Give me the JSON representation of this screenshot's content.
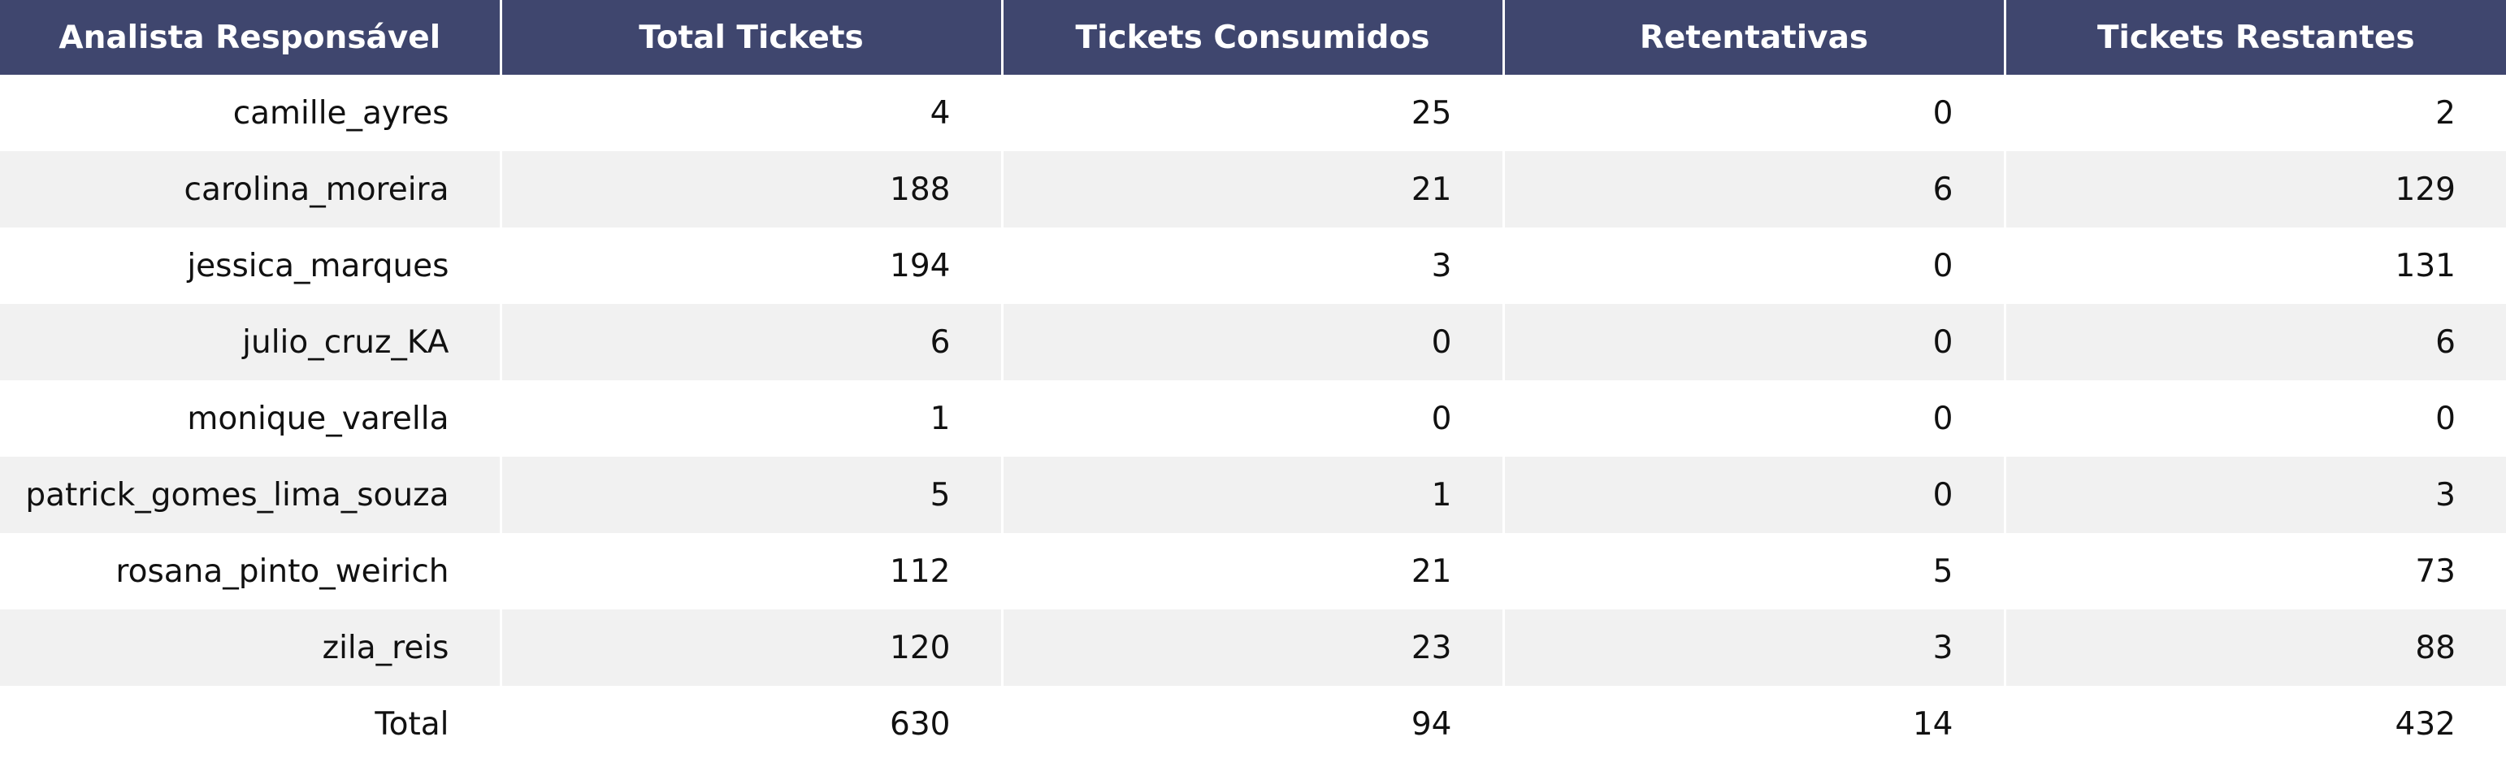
{
  "chart_data": {
    "type": "table",
    "columns": [
      "Analista Responsável",
      "Total Tickets",
      "Tickets Consumidos",
      "Retentativas",
      "Tickets Restantes"
    ],
    "rows": [
      [
        "camille_ayres",
        "4",
        "25",
        "0",
        "2"
      ],
      [
        "carolina_moreira",
        "188",
        "21",
        "6",
        "129"
      ],
      [
        "jessica_marques",
        "194",
        "3",
        "0",
        "131"
      ],
      [
        "julio_cruz_KA",
        "6",
        "0",
        "0",
        "6"
      ],
      [
        "monique_varella",
        "1",
        "0",
        "0",
        "0"
      ],
      [
        "patrick_gomes_lima_souza",
        "5",
        "1",
        "0",
        "3"
      ],
      [
        "rosana_pinto_weirich",
        "112",
        "21",
        "5",
        "73"
      ],
      [
        "zila_reis",
        "120",
        "23",
        "3",
        "88"
      ],
      [
        "Total",
        "630",
        "94",
        "14",
        "432"
      ]
    ]
  },
  "colors": {
    "header_bg": "#3f466e",
    "header_text": "#ffffff",
    "stripe": "#f1f1f1"
  }
}
